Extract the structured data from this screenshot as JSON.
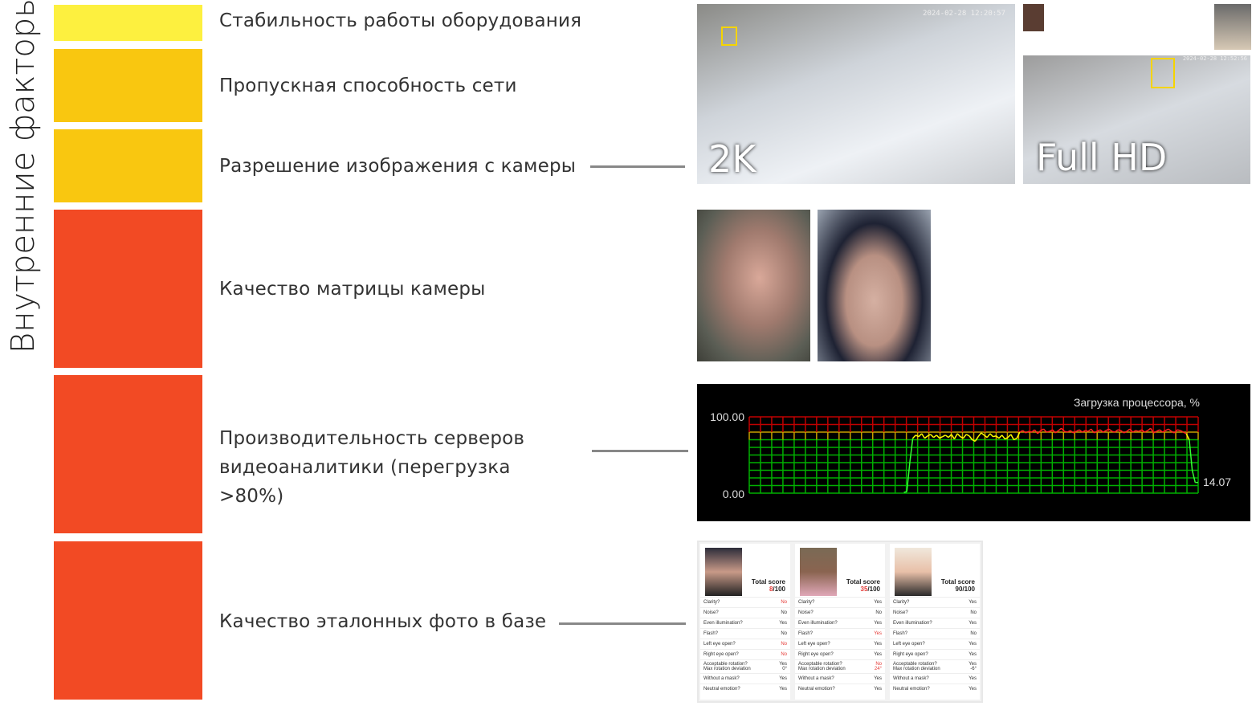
{
  "side_title": "Внутренние факторы",
  "colors": {
    "yellow": "#FDF03F",
    "amber": "#F9C710",
    "red": "#F24A24"
  },
  "factors": [
    {
      "label": "Стабильность работы оборудования",
      "level": "yellow"
    },
    {
      "label": "Пропускная способность сети",
      "level": "amber"
    },
    {
      "label": "Разрешение изображения с камеры",
      "level": "amber"
    },
    {
      "label": "Качество матрицы камеры",
      "level": "red"
    },
    {
      "label": "Производительность серверов видеоаналитики (перегрузка >80%)",
      "level": "red"
    },
    {
      "label": "Качество эталонных фото в базе",
      "level": "red"
    }
  ],
  "resolution": {
    "left_label": "2K",
    "left_timestamp": "2024-02-28 12:20:57",
    "right_label": "Full HD",
    "right_timestamp": "2024-02-28 12:52:56"
  },
  "chart_data": {
    "type": "line",
    "title": "Загрузка процессора, %",
    "ytick_labels": [
      "100.00",
      "0.00"
    ],
    "ylim": [
      0,
      100
    ],
    "current_value_label": "14.07",
    "grid": true,
    "zones": [
      {
        "from": 0,
        "to": 70,
        "color": "#00b000"
      },
      {
        "from": 70,
        "to": 80,
        "color": "#c8a000"
      },
      {
        "from": 80,
        "to": 100,
        "color": "#c00000"
      }
    ],
    "values": [
      null,
      null,
      null,
      null,
      null,
      null,
      null,
      null,
      null,
      null,
      null,
      null,
      null,
      null,
      null,
      null,
      null,
      null,
      null,
      null,
      null,
      null,
      null,
      null,
      null,
      null,
      null,
      null,
      null,
      null,
      null,
      null,
      null,
      null,
      null,
      null,
      null,
      null,
      null,
      null,
      null,
      null,
      null,
      null,
      null,
      null,
      null,
      null,
      null,
      null,
      null,
      null,
      1,
      2,
      40,
      72,
      76,
      74,
      78,
      72,
      75,
      77,
      73,
      76,
      72,
      74,
      76,
      73,
      77,
      71,
      78,
      74,
      72,
      77,
      75,
      70,
      68,
      74,
      79,
      76,
      73,
      78,
      74,
      75,
      72,
      76,
      71,
      73,
      77,
      70,
      72,
      80,
      82,
      79,
      81,
      80,
      83,
      78,
      82,
      84,
      80,
      81,
      83,
      79,
      82,
      85,
      81,
      80,
      82,
      79,
      81,
      83,
      80,
      82,
      81,
      84,
      79,
      81,
      83,
      80,
      82,
      84,
      81,
      80,
      83,
      82,
      79,
      81,
      84,
      80,
      82,
      81,
      83,
      80,
      82,
      85,
      79,
      81,
      83,
      80,
      82,
      84,
      81,
      79,
      83,
      82,
      80,
      78,
      70,
      30,
      14,
      14.07
    ]
  },
  "cards": [
    {
      "score": "8",
      "max": "/100",
      "score_red": true,
      "rows": [
        [
          "Clarity?",
          "No",
          1
        ],
        [
          "Noise?",
          "No",
          0
        ],
        [
          "Even illumination?",
          "Yes",
          0
        ],
        [
          "Flash?",
          "No",
          0
        ],
        [
          "Left eye open?",
          "No",
          1
        ],
        [
          "Right eye open?",
          "No",
          1
        ],
        [
          "Acceptable rotation?\nMax rotation deviation",
          "Yes\n0°",
          0
        ],
        [
          "Without a mask?",
          "Yes",
          0
        ],
        [
          "Neutral emotion?",
          "Yes",
          0
        ]
      ]
    },
    {
      "score": "35",
      "max": "/100",
      "score_red": true,
      "rows": [
        [
          "Clarity?",
          "Yes",
          0
        ],
        [
          "Noise?",
          "No",
          0
        ],
        [
          "Even illumination?",
          "Yes",
          0
        ],
        [
          "Flash?",
          "Yes",
          1
        ],
        [
          "Left eye open?",
          "Yes",
          0
        ],
        [
          "Right eye open?",
          "Yes",
          0
        ],
        [
          "Acceptable rotation?\nMax rotation deviation",
          "No\n24°",
          1
        ],
        [
          "Without a mask?",
          "Yes",
          0
        ],
        [
          "Neutral emotion?",
          "Yes",
          0
        ]
      ]
    },
    {
      "score": "90",
      "max": "/100",
      "score_red": false,
      "rows": [
        [
          "Clarity?",
          "Yes",
          0
        ],
        [
          "Noise?",
          "No",
          0
        ],
        [
          "Even illumination?",
          "Yes",
          0
        ],
        [
          "Flash?",
          "No",
          0
        ],
        [
          "Left eye open?",
          "Yes",
          0
        ],
        [
          "Right eye open?",
          "Yes",
          0
        ],
        [
          "Acceptable rotation?\nMax rotation deviation",
          "Yes\n-6°",
          0
        ],
        [
          "Without a mask?",
          "Yes",
          0
        ],
        [
          "Neutral emotion?",
          "Yes",
          0
        ]
      ]
    }
  ],
  "card_total_label": "Total score"
}
